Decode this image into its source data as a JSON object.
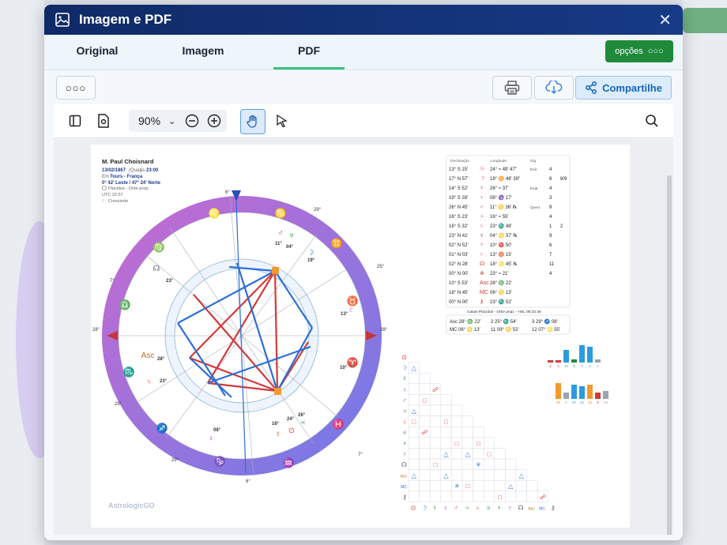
{
  "window": {
    "title": "Imagem e PDF",
    "close_icon": "✕"
  },
  "tabs": [
    {
      "label": "Original"
    },
    {
      "label": "Imagem"
    },
    {
      "label": "PDF"
    }
  ],
  "options_button": {
    "label": "opções"
  },
  "share_button": {
    "label": "Compartilhe"
  },
  "viewer": {
    "zoom": "90%"
  },
  "chart": {
    "name": "M. Paul Choisnard",
    "date": "13/02/1867",
    "weekday": "(Qua)",
    "time_prefix": "às",
    "time": "23:00",
    "place_prefix": "Em",
    "place": "Tours - França",
    "coords": "0° 42' Leste / 47° 24' Norte",
    "system": "Placidus - Orbe prop.",
    "utc": "UTC 22:57",
    "moon_phase": "Crescente",
    "brand": "AstrologicGO",
    "houses_caption": "Casas Placidus - Orbe prop. - HSL 08:33:48"
  },
  "planet_table": {
    "headers": [
      "Declinação",
      "Longitude",
      "Dig"
    ],
    "rows": [
      {
        "decl": "13° S 15'",
        "sym": "☉",
        "lon": "24° ≈ 49' 47\"",
        "dig": "Exil.",
        "a": "4",
        "b": ""
      },
      {
        "decl": "17° N 57'",
        "sym": "☽",
        "lon": "19° ♊ 48' 39\"",
        "dig": "",
        "a": "8",
        "b": "8/9"
      },
      {
        "decl": "14° S 52'",
        "sym": "☿",
        "lon": "26° ≈ 37'",
        "dig": "Exal.",
        "a": "4",
        "b": ""
      },
      {
        "decl": "19° S 28'",
        "sym": "♀",
        "lon": "08° ♑ 17'",
        "dig": "",
        "a": "3",
        "b": ""
      },
      {
        "decl": "26° N 45'",
        "sym": "♂",
        "lon": "11° ♋ 36' ℞",
        "dig": "Qued.",
        "a": "9",
        "b": ""
      },
      {
        "decl": "16° S 23'",
        "sym": "♃",
        "lon": "16° ≈ 55'",
        "dig": "",
        "a": "4",
        "b": ""
      },
      {
        "decl": "16° S 32'",
        "sym": "♄",
        "lon": "23° ♏ 48'",
        "dig": "",
        "a": "1",
        "b": "2"
      },
      {
        "decl": "23° N 41'",
        "sym": "♅",
        "lon": "04° ♋ 37' ℞",
        "dig": "",
        "a": "9",
        "b": ""
      },
      {
        "decl": "02° N 52'",
        "sym": "♆",
        "lon": "10° ♈ 50'",
        "dig": "",
        "a": "6",
        "b": ""
      },
      {
        "decl": "01° N 03'",
        "sym": "♇",
        "lon": "13° ♉ 15'",
        "dig": "",
        "a": "7",
        "b": ""
      },
      {
        "decl": "02° N 28'",
        "sym": "☊",
        "lon": "18° ♌ 45' ℞",
        "dig": "",
        "a": "11",
        "b": ""
      },
      {
        "decl": "00° N 00'",
        "sym": "⊗",
        "lon": "23° ≈ 21'",
        "dig": "",
        "a": "4",
        "b": ""
      },
      {
        "decl": "10° S 53'",
        "sym": "Asc",
        "lon": "28° ♎ 22'",
        "dig": "",
        "a": "",
        "b": ""
      },
      {
        "decl": "18° N 45'",
        "sym": "MC",
        "lon": "06° ♋ 13'",
        "dig": "",
        "a": "",
        "b": ""
      },
      {
        "decl": "00° N 00'",
        "sym": "⚷",
        "lon": "23° ♏ 52'",
        "dig": "",
        "a": "",
        "b": ""
      }
    ],
    "houses": [
      "Asc 28° ♎ 22'",
      "2 25° ♏ 54'",
      "3 29° ♐ 08'",
      "MC 06° ♋ 13'",
      "11 09° ♋ 52'",
      "12 07° ♌ 55'"
    ]
  },
  "bars": {
    "top_labels": [
      "1",
      "2",
      "14",
      "3",
      "7",
      "4",
      "1"
    ],
    "bottom_labels": [
      "30",
      "6",
      "27",
      "22",
      "26",
      "8",
      "15"
    ]
  },
  "chart_colors": {
    "wheel_start": "#c86ad0",
    "wheel_end": "#6f7be8",
    "red": "#d23a3a",
    "blue": "#2c6fd6",
    "green": "#1f8a3a"
  }
}
